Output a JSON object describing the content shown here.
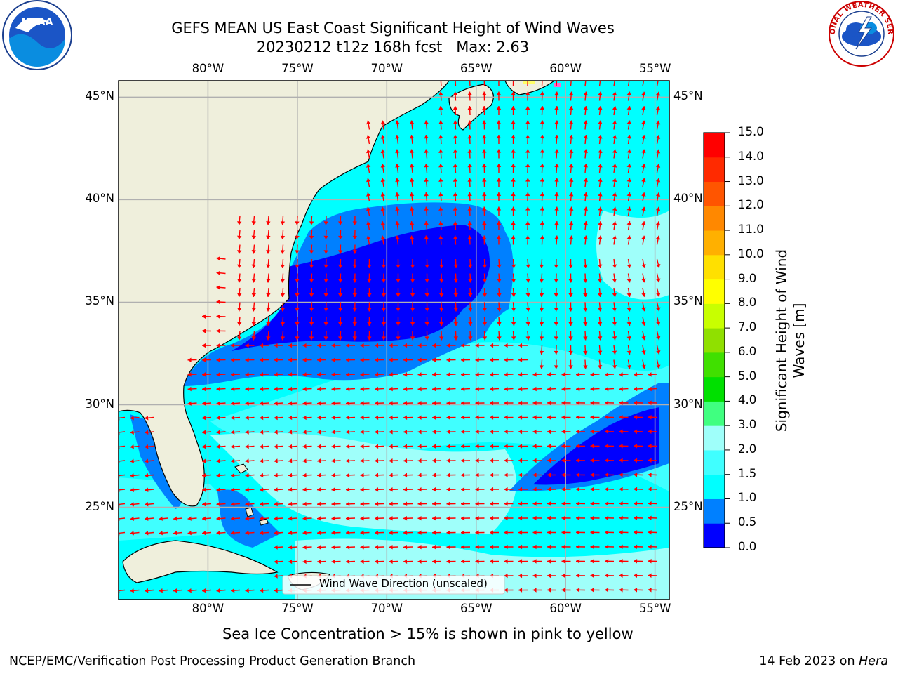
{
  "title": {
    "line1": "GEFS MEAN US East Coast Significant Height of Wind Waves",
    "line2": "20230212 t12z 168h fcst   Max: 2.63"
  },
  "map": {
    "lon_labels": [
      "80°W",
      "75°W",
      "70°W",
      "65°W",
      "60°W",
      "55°W"
    ],
    "lat_labels": [
      "45°N",
      "40°N",
      "35°N",
      "30°N",
      "25°N"
    ],
    "lon_values": [
      -80,
      -75,
      -70,
      -65,
      -60,
      -55
    ],
    "lat_values": [
      45,
      40,
      35,
      30,
      25
    ],
    "extent": {
      "lon_min": -85,
      "lon_max": -54.2,
      "lat_min": 20.5,
      "lat_max": 45.8
    },
    "legend_label": "Wind Wave Direction (unscaled)",
    "ocean_color": "#00ffff",
    "land_color": "#efefdc",
    "arrow_color": "#ff0000"
  },
  "colorbar": {
    "title": "Significant Height of Wind Waves [m]",
    "ticks": [
      "0.0",
      "0.5",
      "1.0",
      "1.5",
      "2.0",
      "3.0",
      "4.0",
      "5.0",
      "6.0",
      "7.0",
      "8.0",
      "9.0",
      "10.0",
      "11.0",
      "12.0",
      "13.0",
      "14.0",
      "15.0"
    ],
    "colors": [
      "#0000ff",
      "#0080ff",
      "#00ffff",
      "#40ffff",
      "#9ffffa",
      "#40ff80",
      "#00e000",
      "#40e000",
      "#90e000",
      "#c8ff00",
      "#ffff00",
      "#ffe000",
      "#ffb000",
      "#ff8800",
      "#ff5500",
      "#ff2a00",
      "#ff0000"
    ]
  },
  "notes": {
    "sea_ice": "Sea Ice Concentration > 15% is shown in pink to yellow"
  },
  "footer": {
    "left": "NCEP/EMC/Verification Post Processing Product Generation Branch",
    "right_date": "14 Feb 2023 on ",
    "right_host": "Hera"
  },
  "logos": {
    "noaa": "NOAA",
    "nws": "NATIONAL WEATHER SERVICE"
  }
}
